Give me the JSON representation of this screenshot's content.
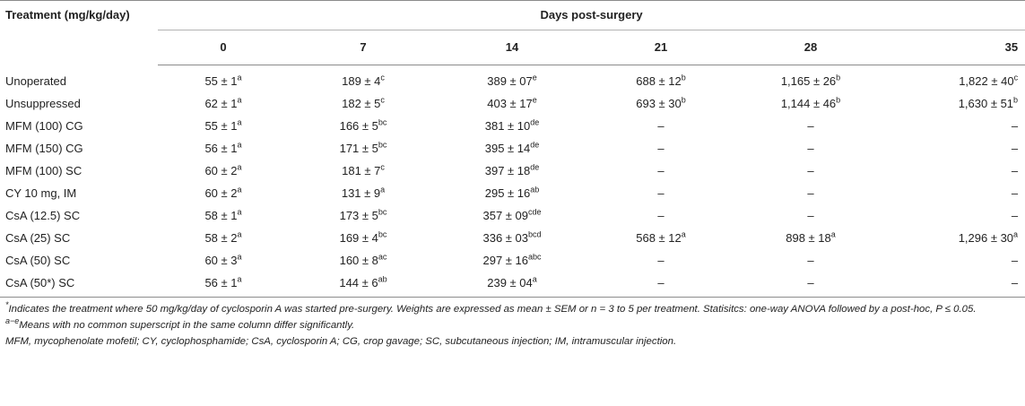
{
  "header": {
    "treatment_label": "Treatment (mg/kg/day)",
    "days_label": "Days post-surgery",
    "days": [
      "0",
      "7",
      "14",
      "21",
      "28",
      "35"
    ]
  },
  "rows": [
    {
      "treatment": "Unoperated",
      "cells": [
        [
          "55 ± 1",
          "a"
        ],
        [
          "189 ± 4",
          "c"
        ],
        [
          "389 ± 07",
          "e"
        ],
        [
          "688 ± 12",
          "b"
        ],
        [
          "1,165 ± 26",
          "b"
        ],
        [
          "1,822 ± 40",
          "c"
        ]
      ]
    },
    {
      "treatment": "Unsuppressed",
      "cells": [
        [
          "62 ± 1",
          "a"
        ],
        [
          "182 ± 5",
          "c"
        ],
        [
          "403 ± 17",
          "e"
        ],
        [
          "693 ± 30",
          "b"
        ],
        [
          "1,144 ± 46",
          "b"
        ],
        [
          "1,630 ± 51",
          "b"
        ]
      ]
    },
    {
      "treatment": "MFM (100) CG",
      "cells": [
        [
          "55 ± 1",
          "a"
        ],
        [
          "166 ± 5",
          "bc"
        ],
        [
          "381 ± 10",
          "de"
        ],
        [
          "–",
          ""
        ],
        [
          "–",
          ""
        ],
        [
          "–",
          ""
        ]
      ]
    },
    {
      "treatment": "MFM (150) CG",
      "cells": [
        [
          "56 ± 1",
          "a"
        ],
        [
          "171 ± 5",
          "bc"
        ],
        [
          "395 ± 14",
          "de"
        ],
        [
          "–",
          ""
        ],
        [
          "–",
          ""
        ],
        [
          "–",
          ""
        ]
      ]
    },
    {
      "treatment": "MFM (100) SC",
      "cells": [
        [
          "60 ± 2",
          "a"
        ],
        [
          "181 ± 7",
          "c"
        ],
        [
          "397 ± 18",
          "de"
        ],
        [
          "–",
          ""
        ],
        [
          "–",
          ""
        ],
        [
          "–",
          ""
        ]
      ]
    },
    {
      "treatment": "CY 10 mg, IM",
      "cells": [
        [
          "60 ± 2",
          "a"
        ],
        [
          "131 ± 9",
          "a"
        ],
        [
          "295 ± 16",
          "ab"
        ],
        [
          "–",
          ""
        ],
        [
          "–",
          ""
        ],
        [
          "–",
          ""
        ]
      ]
    },
    {
      "treatment": "CsA (12.5) SC",
      "cells": [
        [
          "58 ± 1",
          "a"
        ],
        [
          "173 ± 5",
          "bc"
        ],
        [
          "357 ± 09",
          "cde"
        ],
        [
          "–",
          ""
        ],
        [
          "–",
          ""
        ],
        [
          "–",
          ""
        ]
      ]
    },
    {
      "treatment": "CsA (25) SC",
      "cells": [
        [
          "58 ± 2",
          "a"
        ],
        [
          "169 ± 4",
          "bc"
        ],
        [
          "336 ± 03",
          "bcd"
        ],
        [
          "568 ± 12",
          "a"
        ],
        [
          "898 ± 18",
          "a"
        ],
        [
          "1,296 ± 30",
          "a"
        ]
      ]
    },
    {
      "treatment": "CsA (50) SC",
      "cells": [
        [
          "60 ± 3",
          "a"
        ],
        [
          "160 ± 8",
          "ac"
        ],
        [
          "297 ± 16",
          "abc"
        ],
        [
          "–",
          ""
        ],
        [
          "–",
          ""
        ],
        [
          "–",
          ""
        ]
      ]
    },
    {
      "treatment": "CsA (50*) SC",
      "cells": [
        [
          "56 ± 1",
          "a"
        ],
        [
          "144 ± 6",
          "ab"
        ],
        [
          "239 ± 04",
          "a"
        ],
        [
          "–",
          ""
        ],
        [
          "–",
          ""
        ],
        [
          "–",
          ""
        ]
      ]
    }
  ],
  "notes": {
    "star_mark": "*",
    "star_text": "Indicates the treatment where 50 mg/kg/day of cyclosporin A was started pre-surgery. Weights are expressed as mean ± SEM or n = 3 to 5 per treatment. Statisitcs: one-way ANOVA followed by a post-hoc, P ≤ 0.05.",
    "ae_mark": "a−e",
    "ae_text": "Means with no common superscript in the same column differ significantly.",
    "abbrev": "MFM, mycophenolate mofetil; CY, cyclophosphamide; CsA, cyclosporin A; CG, crop gavage; SC, subcutaneous injection; IM, intramuscular injection."
  }
}
